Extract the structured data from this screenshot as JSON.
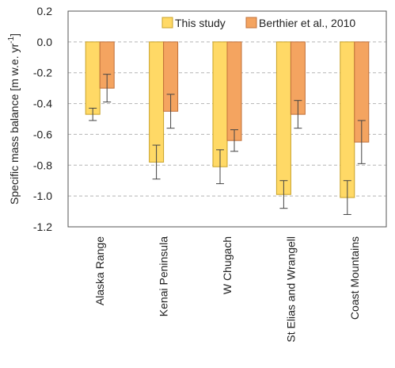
{
  "chart_data": {
    "type": "bar",
    "categories": [
      "Alaska Range",
      "Kenai Peninsula",
      "W Chugach",
      "St Elias and Wrangell",
      "Coast Mountains"
    ],
    "series": [
      {
        "name": "This study",
        "color": "#FFD966",
        "edge": "#C9A227",
        "values": [
          -0.47,
          -0.78,
          -0.81,
          -0.99,
          -1.01
        ],
        "errors": [
          0.04,
          0.11,
          0.11,
          0.09,
          0.11
        ]
      },
      {
        "name": "Berthier et al., 2010",
        "color": "#F4A460",
        "edge": "#C0703A",
        "values": [
          -0.3,
          -0.45,
          -0.64,
          -0.47,
          -0.65
        ],
        "errors": [
          0.09,
          0.11,
          0.07,
          0.09,
          0.14
        ]
      }
    ],
    "ylabel_main": "Specific mass balance [m w.e. yr",
    "ylabel_sup": "-1",
    "ylabel_end": "]",
    "ylim": [
      -1.2,
      0.2
    ],
    "yticks": [
      0.2,
      0.0,
      -0.2,
      -0.4,
      -0.6,
      -0.8,
      -1.0,
      -1.2
    ],
    "ytick_labels": [
      "0.2",
      "0.0",
      "-0.2",
      "-0.4",
      "-0.6",
      "-0.8",
      "-1.0",
      "-1.2"
    ],
    "grid": true,
    "legend_position": "top-right"
  }
}
